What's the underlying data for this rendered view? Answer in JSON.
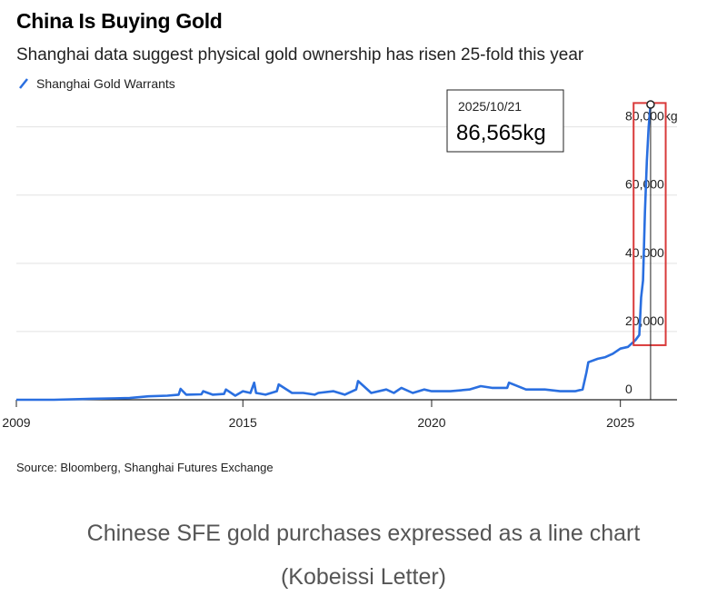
{
  "header": {
    "title": "China Is Buying Gold",
    "subtitle": "Shanghai data suggest physical gold ownership has risen 25-fold this year"
  },
  "colors": {
    "line": "#2a6fe0",
    "highlight": "#d93a3a",
    "grid": "#e2e2e2",
    "axis": "#222222"
  },
  "chart_data": {
    "type": "line",
    "title": "China Is Buying Gold",
    "subtitle": "Shanghai data suggest physical gold ownership has risen 25-fold this year",
    "series": [
      {
        "name": "Shanghai Gold Warrants",
        "x": [
          2009.0,
          2010.0,
          2011.0,
          2012.0,
          2012.5,
          2013.0,
          2013.3,
          2013.35,
          2013.5,
          2013.9,
          2013.95,
          2014.2,
          2014.5,
          2014.55,
          2014.8,
          2015.0,
          2015.2,
          2015.3,
          2015.35,
          2015.6,
          2015.9,
          2015.95,
          2016.3,
          2016.6,
          2016.9,
          2017.0,
          2017.4,
          2017.7,
          2018.0,
          2018.05,
          2018.4,
          2018.8,
          2019.0,
          2019.2,
          2019.5,
          2019.8,
          2020.0,
          2020.5,
          2021.0,
          2021.3,
          2021.6,
          2022.0,
          2022.05,
          2022.5,
          2023.0,
          2023.4,
          2023.8,
          2024.0,
          2024.1,
          2024.15,
          2024.4,
          2024.6,
          2024.8,
          2025.0,
          2025.2,
          2025.4,
          2025.5,
          2025.55,
          2025.6,
          2025.65,
          2025.7,
          2025.75,
          2025.8
        ],
        "y": [
          0,
          0,
          300,
          500,
          1000,
          1200,
          1500,
          3200,
          1500,
          1600,
          2500,
          1500,
          1700,
          3000,
          1200,
          2500,
          2000,
          5000,
          2000,
          1500,
          2500,
          4500,
          2000,
          2000,
          1500,
          2000,
          2500,
          1500,
          3000,
          5500,
          2000,
          3000,
          2000,
          3500,
          2000,
          3000,
          2500,
          2500,
          3000,
          4000,
          3500,
          3500,
          5000,
          3000,
          3000,
          2500,
          2500,
          3000,
          8000,
          11000,
          12000,
          12500,
          13500,
          15000,
          15500,
          17500,
          19000,
          30000,
          35000,
          55000,
          70000,
          80000,
          86565
        ]
      }
    ],
    "xlim": [
      2009,
      2026.5
    ],
    "ylim": [
      0,
      86565
    ],
    "xticks": [
      2009,
      2015,
      2020,
      2025
    ],
    "yticks": [
      0,
      20000,
      40000,
      60000,
      80000
    ],
    "ytick_labels": [
      "0",
      "20,000",
      "40,000",
      "60,000",
      "80,000kg"
    ],
    "grid": true,
    "legend_position": "top-left",
    "annotation": {
      "date": "2025/10/21",
      "value_label": "86,565kg",
      "x": 2025.8,
      "y": 86565
    },
    "highlight_box": {
      "x_range": [
        2025.35,
        2026.2
      ],
      "y_range": [
        16000,
        87000
      ]
    }
  },
  "footer": {
    "source": "Source: Bloomberg, Shanghai Futures Exchange",
    "caption_line1": "Chinese SFE gold purchases expressed as a line chart",
    "caption_line2": "(Kobeissi Letter)"
  }
}
